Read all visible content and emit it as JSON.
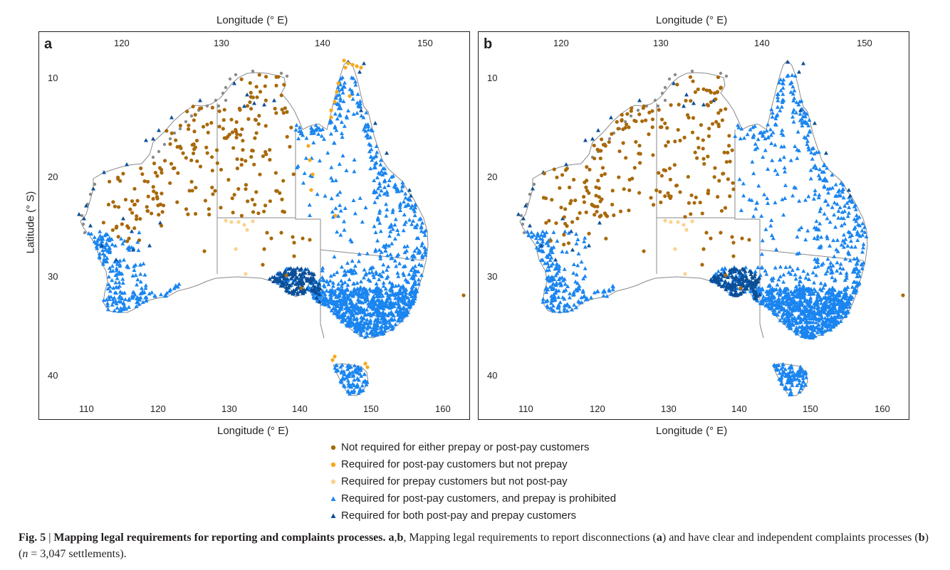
{
  "figure": {
    "top_axis_label": "Longitude (° E)",
    "bottom_axis_label": "Longitude (° E)",
    "y_axis_label": "Latitude (° S)",
    "panels": [
      {
        "letter": "a"
      },
      {
        "letter": "b"
      }
    ],
    "top_ticks": [
      "120",
      "130",
      "140",
      "150"
    ],
    "bottom_ticks": [
      "110",
      "120",
      "130",
      "140",
      "150",
      "160"
    ],
    "lat_ticks": [
      "10",
      "20",
      "30",
      "40"
    ]
  },
  "legend": {
    "items": [
      {
        "label": "Not required for either prepay or post-pay customers",
        "marker": "circle",
        "color": "#a8690b"
      },
      {
        "label": "Required for post-pay customers but not prepay",
        "marker": "circle",
        "color": "#f7a81b"
      },
      {
        "label": "Required for prepay customers but not post-pay",
        "marker": "circle",
        "color": "#fbd28e"
      },
      {
        "label": "Required for post-pay customers, and prepay is prohibited",
        "marker": "triangle",
        "color": "#1a85f0"
      },
      {
        "label": "Required for both post-pay and prepay customers",
        "marker": "triangle",
        "color": "#0b4e96"
      }
    ]
  },
  "caption": {
    "fig_label": "Fig. 5",
    "separator": " | ",
    "title": "Mapping legal requirements for reporting and complaints processes.",
    "panels_ref": " a",
    "comma": ",",
    "panels_ref2": "b",
    "text1": ", Mapping legal requirements to report disconnections (",
    "ref_a": "a",
    "text2": ") and have clear and independent complaints processes (",
    "ref_b": "b",
    "text3": ") (",
    "n_sym": "n",
    "text4": " = 3,047 settlements)."
  }
}
